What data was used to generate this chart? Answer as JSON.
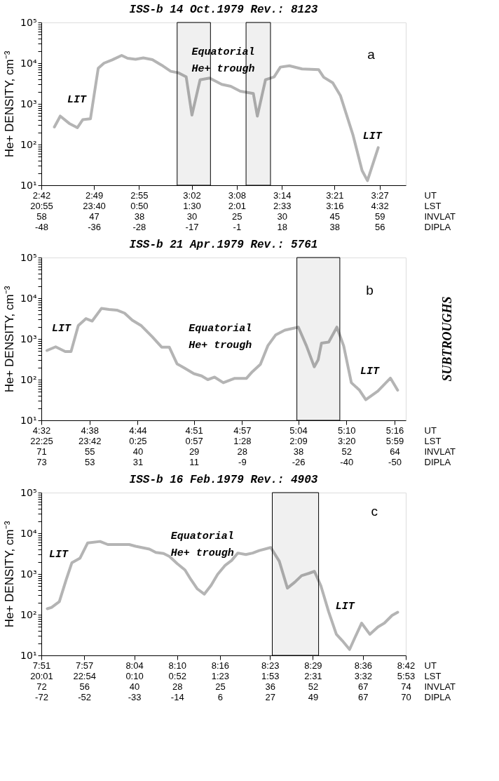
{
  "chart_data": [
    {
      "type": "line",
      "title": "ISS-b   14 Oct.1979   Rev.: 8123",
      "ylabel": "He+  DENSITY, cm⁻³",
      "xlabel": "UT\nLST\nINVLAT\nDIPLA",
      "log": "y",
      "x": [
        "1979-10-14T02:43:44",
        "1979-10-14T02:44:31",
        "1979-10-14T02:45:43",
        "1979-10-14T02:46:48",
        "1979-10-14T02:47:31",
        "1979-10-14T02:48:32",
        "1979-10-14T02:49:34",
        "1979-10-14T02:50:20",
        "1979-10-14T02:51:25",
        "1979-10-14T02:52:41",
        "1979-10-14T02:53:28",
        "1979-10-14T02:54:32",
        "1979-10-14T02:55:34",
        "1979-10-14T02:56:46",
        "1979-10-14T02:58:01",
        "1979-10-14T02:59:13",
        "1979-10-14T03:00:14",
        "1979-10-14T03:01:16",
        "1979-10-14T03:02:02",
        "1979-10-14T03:03:07",
        "1979-10-14T03:04:23",
        "1979-10-14T03:06:00",
        "1979-10-14T03:07:12",
        "1979-10-14T03:08:28",
        "1979-10-14T03:10:12",
        "1979-10-14T03:10:44",
        "1979-10-14T03:11:49",
        "1979-10-14T03:12:58",
        "1979-10-14T03:13:48",
        "1979-10-14T03:15:00",
        "1979-10-14T03:16:41",
        "1979-10-14T03:18:54",
        "1979-10-14T03:19:34",
        "1979-10-14T03:20:46",
        "1979-10-14T03:21:47",
        "1979-10-14T03:23:28",
        "1979-10-14T03:24:40",
        "1979-10-14T03:25:23",
        "1979-10-14T03:26:49"
      ],
      "series": [
        {
          "color": "#b4b4b4",
          "values": [
            270,
            500,
            330,
            260,
            410,
            430,
            7500,
            10000,
            12000,
            15500,
            13200,
            12400,
            13500,
            12200,
            8900,
            6300,
            5800,
            4600,
            530,
            3900,
            4300,
            3000,
            2700,
            2050,
            1800,
            500,
            3900,
            4600,
            8000,
            8600,
            7200,
            6900,
            4500,
            3300,
            1600,
            170,
            23,
            13,
            84
          ]
        }
      ],
      "xlim": [
        "1979-10-14T02:42",
        "1979-10-14T03:30:29"
      ],
      "xticks": [
        {
          "value": "1979-10-14T02:42",
          "label": "2:42\n20:55\n58\n-48"
        },
        {
          "value": "1979-10-14T02:49",
          "label": "2:49\n23:40\n47\n-36"
        },
        {
          "value": "1979-10-14T02:55",
          "label": "2:55\n0:50\n38\n-28"
        },
        {
          "value": "1979-10-14T03:02",
          "label": "3:02\n1:30\n30\n-17"
        },
        {
          "value": "1979-10-14T03:08",
          "label": "3:08\n2:01\n25\n-1"
        },
        {
          "value": "1979-10-14T03:14",
          "label": "3:14\n2:33\n30\n18"
        },
        {
          "value": "1979-10-14T03:21",
          "label": "3:21\n3:16\n45\n38"
        },
        {
          "value": "1979-10-14T03:27",
          "label": "3:27\n4:32\n59\n56"
        }
      ],
      "ylim": [
        10,
        100000
      ],
      "yticks": [
        {
          "value": 10,
          "label": "10¹"
        },
        {
          "value": 20,
          "label": null
        },
        {
          "value": 30,
          "label": null
        },
        {
          "value": 40,
          "label": null
        },
        {
          "value": 50,
          "label": null
        },
        {
          "value": 60,
          "label": null
        },
        {
          "value": 70,
          "label": null
        },
        {
          "value": 80,
          "label": null
        },
        {
          "value": 90,
          "label": null
        },
        {
          "value": 100,
          "label": "10²"
        },
        {
          "value": 200,
          "label": null
        },
        {
          "value": 300,
          "label": null
        },
        {
          "value": 400,
          "label": null
        },
        {
          "value": 500,
          "label": null
        },
        {
          "value": 600,
          "label": null
        },
        {
          "value": 700,
          "label": null
        },
        {
          "value": 800,
          "label": null
        },
        {
          "value": 900,
          "label": null
        },
        {
          "value": 1000,
          "label": "10³"
        },
        {
          "value": 2000,
          "label": null
        },
        {
          "value": 3000,
          "label": null
        },
        {
          "value": 4000,
          "label": null
        },
        {
          "value": 5000,
          "label": null
        },
        {
          "value": 6000,
          "label": null
        },
        {
          "value": 7000,
          "label": null
        },
        {
          "value": 8000,
          "label": null
        },
        {
          "value": 9000,
          "label": null
        },
        {
          "value": 10000,
          "label": "10⁴"
        },
        {
          "value": 20000,
          "label": null
        },
        {
          "value": 30000,
          "label": null
        },
        {
          "value": 40000,
          "label": null
        },
        {
          "value": 50000,
          "label": null
        },
        {
          "value": 60000,
          "label": null
        },
        {
          "value": 70000,
          "label": null
        },
        {
          "value": 80000,
          "label": null
        },
        {
          "value": 90000,
          "label": null
        },
        {
          "value": 100000,
          "label": "10⁵"
        }
      ],
      "grid": false,
      "bands": [
        {
          "axis": "x",
          "from": "1979-10-14T03:00:04",
          "to": "1979-10-14T03:04:30",
          "color": "#000000"
        },
        {
          "axis": "x",
          "from": "1979-10-14T03:09:14",
          "to": "1979-10-14T03:12:29",
          "color": "#000000"
        }
      ],
      "annotations": [
        "a",
        "LIT",
        "LIT",
        "Equatorial\nHe+ trough"
      ]
    },
    {
      "type": "line",
      "title": "ISS-b   21 Apr.1979   Rev.: 5761",
      "ylabel": "He+  DENSITY, cm⁻³",
      "xlabel": "UT\nLST\nINVLAT\nDIPLA",
      "log": "y",
      "x": [
        "1979-04-21T04:32:42",
        "1979-04-21T04:33:47",
        "1979-04-21T04:34:59",
        "1979-04-21T04:35:42",
        "1979-04-21T04:36:36",
        "1979-04-21T04:37:34",
        "1979-04-21T04:38:20",
        "1979-04-21T04:39:29",
        "1979-04-21T04:40:26",
        "1979-04-21T04:41:24",
        "1979-04-21T04:42:22",
        "1979-04-21T04:43:19",
        "1979-04-21T04:44:28",
        "1979-04-21T04:45:50",
        "1979-04-21T04:46:59",
        "1979-04-21T04:47:56",
        "1979-04-21T04:48:54",
        "1979-04-21T04:49:52",
        "1979-04-21T04:51:00",
        "1979-04-21T04:51:58",
        "1979-04-21T04:52:44",
        "1979-04-21T04:53:35",
        "1979-04-21T04:54:40",
        "1979-04-21T04:56:02",
        "1979-04-21T04:57:32",
        "1979-04-21T04:58:16",
        "1979-04-21T04:59:17",
        "1979-04-21T05:00:14",
        "1979-04-21T05:01:12",
        "1979-04-21T05:02:20",
        "1979-04-21T05:04:01",
        "1979-04-21T05:05:02",
        "1979-04-21T05:06:00",
        "1979-04-21T05:06:29",
        "1979-04-21T05:06:54",
        "1979-04-21T05:07:48",
        "1979-04-21T05:08:49",
        "1979-04-21T05:09:40",
        "1979-04-21T05:10:37",
        "1979-04-21T05:11:38",
        "1979-04-21T05:12:25",
        "1979-04-21T05:13:55",
        "1979-04-21T05:15:29",
        "1979-04-21T05:16:23"
      ],
      "series": [
        {
          "color": "#b4b4b4",
          "values": [
            520,
            640,
            490,
            490,
            2120,
            3160,
            2750,
            5600,
            5300,
            5100,
            4300,
            2900,
            2100,
            1120,
            630,
            630,
            245,
            190,
            140,
            123,
            100,
            115,
            84,
            107,
            107,
            155,
            237,
            690,
            1260,
            1640,
            1950,
            670,
            206,
            307,
            790,
            835,
            1950,
            670,
            84,
            55,
            32,
            52,
            109,
            55
          ]
        }
      ],
      "xlim": [
        "1979-04-21T04:32",
        "1979-04-21T05:17:24"
      ],
      "xticks": [
        {
          "value": "1979-04-21T04:32",
          "label": "4:32\n22:25\n71\n73"
        },
        {
          "value": "1979-04-21T04:38",
          "label": "4:38\n23:42\n55\n53"
        },
        {
          "value": "1979-04-21T04:44",
          "label": "4:44\n0:25\n40\n31"
        },
        {
          "value": "1979-04-21T04:51",
          "label": "4:51\n0:57\n29\n11"
        },
        {
          "value": "1979-04-21T04:57",
          "label": "4:57\n1:28\n28\n-9"
        },
        {
          "value": "1979-04-21T05:04",
          "label": "5:04\n2:09\n38\n-26"
        },
        {
          "value": "1979-04-21T05:10",
          "label": "5:10\n3:20\n52\n-40"
        },
        {
          "value": "1979-04-21T05:16",
          "label": "5:16\n5:59\n64\n-50"
        }
      ],
      "ylim": [
        10,
        100000
      ],
      "yticks": [
        {
          "value": 10,
          "label": "10¹"
        },
        {
          "value": 20,
          "label": null
        },
        {
          "value": 30,
          "label": null
        },
        {
          "value": 40,
          "label": null
        },
        {
          "value": 50,
          "label": null
        },
        {
          "value": 60,
          "label": null
        },
        {
          "value": 70,
          "label": null
        },
        {
          "value": 80,
          "label": null
        },
        {
          "value": 90,
          "label": null
        },
        {
          "value": 100,
          "label": "10²"
        },
        {
          "value": 200,
          "label": null
        },
        {
          "value": 300,
          "label": null
        },
        {
          "value": 400,
          "label": null
        },
        {
          "value": 500,
          "label": null
        },
        {
          "value": 600,
          "label": null
        },
        {
          "value": 700,
          "label": null
        },
        {
          "value": 800,
          "label": null
        },
        {
          "value": 900,
          "label": null
        },
        {
          "value": 1000,
          "label": "10³"
        },
        {
          "value": 2000,
          "label": null
        },
        {
          "value": 3000,
          "label": null
        },
        {
          "value": 4000,
          "label": null
        },
        {
          "value": 5000,
          "label": null
        },
        {
          "value": 6000,
          "label": null
        },
        {
          "value": 7000,
          "label": null
        },
        {
          "value": 8000,
          "label": null
        },
        {
          "value": 9000,
          "label": null
        },
        {
          "value": 10000,
          "label": "10⁴"
        },
        {
          "value": 20000,
          "label": null
        },
        {
          "value": 30000,
          "label": null
        },
        {
          "value": 40000,
          "label": null
        },
        {
          "value": 50000,
          "label": null
        },
        {
          "value": 60000,
          "label": null
        },
        {
          "value": 70000,
          "label": null
        },
        {
          "value": 80000,
          "label": null
        },
        {
          "value": 90000,
          "label": null
        },
        {
          "value": 100000,
          "label": "10⁵"
        }
      ],
      "grid": false,
      "bands": [
        {
          "axis": "x",
          "from": "1979-04-21T05:03:50",
          "to": "1979-04-21T05:09:11",
          "color": "#000000"
        }
      ],
      "annotations": [
        "b",
        "SUBTROUGHS",
        "LIT",
        "LIT",
        "Equatorial\nHe+ trough"
      ]
    },
    {
      "type": "line",
      "title": "ISS-b   16 Feb.1979   Rev.: 4903",
      "ylabel": "He+ DENSITY, cm⁻³",
      "xlabel": "UT\nLST\nINVLAT\nDIPLA",
      "log": "y",
      "x": [
        "1979-02-16T07:51:50",
        "1979-02-16T07:52:26",
        "1979-02-16T07:53:31",
        "1979-02-16T07:54:29",
        "1979-02-16T07:55:16",
        "1979-02-16T07:56:24",
        "1979-02-16T07:57:29",
        "1979-02-16T07:59:13",
        "1979-02-16T08:00:18",
        "1979-02-16T08:03:18",
        "1979-02-16T08:04:12",
        "1979-02-16T08:06:07",
        "1979-02-16T08:07:01",
        "1979-02-16T08:08:06",
        "1979-02-16T08:08:56",
        "1979-02-16T08:10:01",
        "1979-02-16T08:11:06",
        "1979-02-16T08:11:56",
        "1979-02-16T08:12:50",
        "1979-02-16T08:13:48",
        "1979-02-16T08:14:46",
        "1979-02-16T08:15:40",
        "1979-02-16T08:16:44",
        "1979-02-16T08:17:38",
        "1979-02-16T08:18:29",
        "1979-02-16T08:19:37",
        "1979-02-16T08:20:35",
        "1979-02-16T08:21:29",
        "1979-02-16T08:23:06",
        "1979-02-16T08:24:18",
        "1979-02-16T08:25:26",
        "1979-02-16T08:26:28",
        "1979-02-16T08:27:25",
        "1979-02-16T08:28:23",
        "1979-02-16T08:29:13",
        "1979-02-16T08:30:07",
        "1979-02-16T08:31:12",
        "1979-02-16T08:32:17",
        "1979-02-16T08:33:07",
        "1979-02-16T08:34:08",
        "1979-02-16T08:34:52",
        "1979-02-16T08:35:49",
        "1979-02-16T08:36:58",
        "1979-02-16T08:38:06",
        "1979-02-16T08:39:00",
        "1979-02-16T08:40:05",
        "1979-02-16T08:40:52"
      ],
      "series": [
        {
          "color": "#b4b4b4",
          "values": [
            140,
            151,
            210,
            730,
            1880,
            2440,
            5800,
            6300,
            5300,
            5300,
            4800,
            4100,
            3400,
            3200,
            2700,
            1800,
            1260,
            730,
            430,
            320,
            530,
            980,
            1640,
            2160,
            3270,
            3000,
            3270,
            3760,
            4470,
            2050,
            450,
            630,
            910,
            1030,
            1160,
            515,
            119,
            33,
            23,
            14,
            27,
            62,
            33,
            50,
            62,
            96,
            115
          ]
        }
      ],
      "xlim": [
        "1979-02-16T07:51",
        "1979-02-16T08:42"
      ],
      "xticks": [
        {
          "value": "1979-02-16T07:51",
          "label": "7:51\n20:01\n72\n-72"
        },
        {
          "value": "1979-02-16T07:57",
          "label": "7:57\n22:54\n56\n-52"
        },
        {
          "value": "1979-02-16T08:04",
          "label": "8:04\n0:10\n40\n-33"
        },
        {
          "value": "1979-02-16T08:10",
          "label": "8:10\n0:52\n28\n-14"
        },
        {
          "value": "1979-02-16T08:16",
          "label": "8:16\n1:23\n25\n6"
        },
        {
          "value": "1979-02-16T08:23",
          "label": "8:23\n1:53\n36\n27"
        },
        {
          "value": "1979-02-16T08:29",
          "label": "8:29\n2:31\n52\n49"
        },
        {
          "value": "1979-02-16T08:36",
          "label": "8:36\n3:32\n67\n67"
        },
        {
          "value": "1979-02-16T08:42",
          "label": "8:42\n5:53\n74\n70"
        }
      ],
      "ylim": [
        10,
        100000
      ],
      "yticks": [
        {
          "value": 10,
          "label": "10¹"
        },
        {
          "value": 20,
          "label": null
        },
        {
          "value": 30,
          "label": null
        },
        {
          "value": 40,
          "label": null
        },
        {
          "value": 50,
          "label": null
        },
        {
          "value": 60,
          "label": null
        },
        {
          "value": 70,
          "label": null
        },
        {
          "value": 80,
          "label": null
        },
        {
          "value": 90,
          "label": null
        },
        {
          "value": 100,
          "label": "10²"
        },
        {
          "value": 200,
          "label": null
        },
        {
          "value": 300,
          "label": null
        },
        {
          "value": 400,
          "label": null
        },
        {
          "value": 500,
          "label": null
        },
        {
          "value": 600,
          "label": null
        },
        {
          "value": 700,
          "label": null
        },
        {
          "value": 800,
          "label": null
        },
        {
          "value": 900,
          "label": null
        },
        {
          "value": 1000,
          "label": "10³"
        },
        {
          "value": 2000,
          "label": null
        },
        {
          "value": 3000,
          "label": null
        },
        {
          "value": 4000,
          "label": null
        },
        {
          "value": 5000,
          "label": null
        },
        {
          "value": 6000,
          "label": null
        },
        {
          "value": 7000,
          "label": null
        },
        {
          "value": 8000,
          "label": null
        },
        {
          "value": 9000,
          "label": null
        },
        {
          "value": 10000,
          "label": "10⁴"
        },
        {
          "value": 20000,
          "label": null
        },
        {
          "value": 30000,
          "label": null
        },
        {
          "value": 40000,
          "label": null
        },
        {
          "value": 50000,
          "label": null
        },
        {
          "value": 60000,
          "label": null
        },
        {
          "value": 70000,
          "label": null
        },
        {
          "value": 80000,
          "label": null
        },
        {
          "value": 90000,
          "label": null
        },
        {
          "value": 100000,
          "label": "10⁵"
        }
      ],
      "grid": false,
      "bands": [
        {
          "axis": "x",
          "from": "1979-02-16T08:23:19",
          "to": "1979-02-16T08:29:48",
          "color": "#000000"
        }
      ],
      "annotations": [
        "c",
        "LIT",
        "LIT",
        "Equatorial\nHe+ trough"
      ]
    }
  ]
}
